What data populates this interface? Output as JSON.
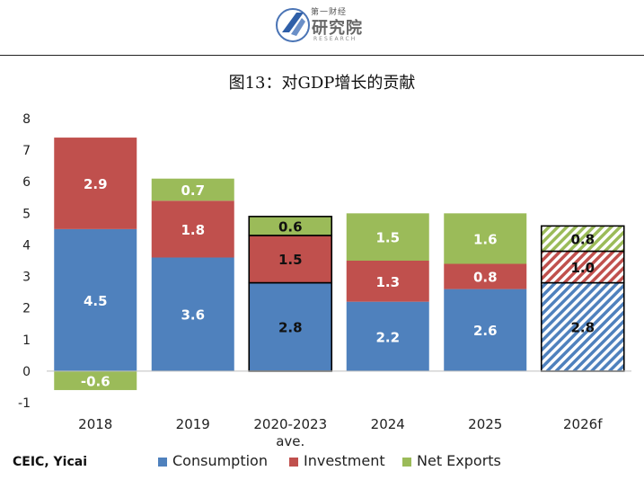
{
  "header": {
    "logo_small": "第一财经",
    "logo_main": "研究院",
    "logo_sub": "RESEARCH"
  },
  "source": "CEIC, Yicai",
  "colors": {
    "consumption": "#4f81bd",
    "investment": "#c0504d",
    "net_exports": "#9bbb59"
  },
  "chart_data": {
    "type": "bar",
    "stacked": true,
    "title": "图13：对GDP增长的贡献",
    "categories": [
      "2018",
      "2019",
      "2020-2023 ave.",
      "2024",
      "2025",
      "2026f"
    ],
    "category_lines": [
      [
        "2018"
      ],
      [
        "2019"
      ],
      [
        "2020-2023",
        "ave."
      ],
      [
        "2024"
      ],
      [
        "2025"
      ],
      [
        "2026f"
      ]
    ],
    "series": [
      {
        "name": "Consumption",
        "values": [
          4.5,
          3.6,
          2.8,
          2.2,
          2.6,
          2.8
        ]
      },
      {
        "name": "Investment",
        "values": [
          2.9,
          1.8,
          1.5,
          1.3,
          0.8,
          1.0
        ]
      },
      {
        "name": "Net Exports",
        "values": [
          -0.6,
          0.7,
          0.6,
          1.5,
          1.6,
          0.8
        ]
      }
    ],
    "value_labels": {
      "Consumption": [
        "4.5",
        "3.6",
        "2.8",
        "2.2",
        "2.6",
        "2.8"
      ],
      "Investment": [
        "2.9",
        "1.8",
        "1.5",
        "1.3",
        "0.8",
        "1.0"
      ],
      "Net Exports": [
        "-0.6",
        "0.7",
        "0.6",
        "1.5",
        "1.6",
        "0.8"
      ]
    },
    "outlined_categories": [
      "2020-2023 ave.",
      "2026f"
    ],
    "forecast_categories": [
      "2026f"
    ],
    "ylim": [
      -1,
      8
    ],
    "yticks": [
      -1,
      0,
      1,
      2,
      3,
      4,
      5,
      6,
      7,
      8
    ],
    "xlabel": "",
    "ylabel": "",
    "grid": false,
    "legend_position": "bottom"
  }
}
